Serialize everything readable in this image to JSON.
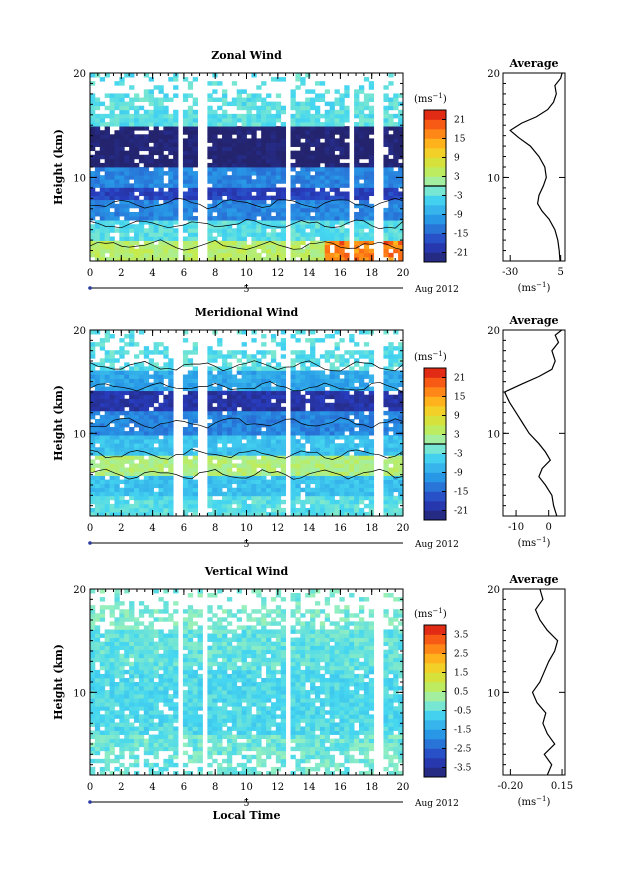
{
  "chart_data": [
    {
      "type": "heatmap",
      "title": "Zonal Wind",
      "ylabel": "Height (km)",
      "xlim": [
        0,
        20
      ],
      "ylim": [
        2,
        20
      ],
      "xticks": [
        "0",
        "2",
        "4",
        "6",
        "8",
        "10",
        "12",
        "14",
        "16",
        "18",
        "20"
      ],
      "yticks": [
        "10",
        "20"
      ],
      "date_tick": "5",
      "date_label": "Aug 2012",
      "colorbar": {
        "unit": "(ms",
        "unit_exp": "−1",
        "unit_close": ")",
        "range": [
          -24,
          24
        ],
        "ticks": [
          "21",
          "15",
          "9",
          "3",
          "-3",
          "-9",
          "-15",
          "-21"
        ],
        "zero_line": 0
      },
      "gaps": [
        [
          5.5,
          5.9
        ],
        [
          7.0,
          7.5
        ],
        [
          12.5,
          12.9
        ],
        [
          16.5,
          16.9
        ],
        [
          18.0,
          18.6
        ]
      ],
      "layers": [
        {
          "from": 2,
          "to": 4,
          "value": 4
        },
        {
          "from": 4,
          "to": 6,
          "value": -3
        },
        {
          "from": 6,
          "to": 8,
          "value": -12
        },
        {
          "from": 8,
          "to": 9,
          "value": -18
        },
        {
          "from": 9,
          "to": 11,
          "value": -12
        },
        {
          "from": 11,
          "to": 13,
          "value": -24
        },
        {
          "from": 13,
          "to": 15,
          "value": -24
        },
        {
          "from": 15,
          "to": 18,
          "value": -3
        }
      ],
      "average": {
        "title": "Average",
        "xlim": [
          -35,
          8
        ],
        "xticks": [
          "-30",
          "5"
        ],
        "unit": "(ms",
        "unit_exp": "−1",
        "unit_close": ")",
        "profile": [
          [
            4.5,
            2
          ],
          [
            4.0,
            3
          ],
          [
            3.0,
            4
          ],
          [
            1.0,
            5
          ],
          [
            -3,
            6
          ],
          [
            -8,
            6.8
          ],
          [
            -11,
            7.5
          ],
          [
            -10,
            8.3
          ],
          [
            -7,
            9.2
          ],
          [
            -5,
            10
          ],
          [
            -6,
            11
          ],
          [
            -10,
            12
          ],
          [
            -16,
            13
          ],
          [
            -24,
            13.8
          ],
          [
            -30,
            14.5
          ],
          [
            -22,
            15.2
          ],
          [
            -12,
            15.8
          ],
          [
            -4,
            16.5
          ],
          [
            0,
            17.2
          ],
          [
            2,
            18
          ],
          [
            1,
            18.8
          ],
          [
            5,
            19.5
          ],
          [
            6,
            20
          ]
        ]
      }
    },
    {
      "type": "heatmap",
      "title": "Meridional Wind",
      "ylabel": "Height (km)",
      "xlim": [
        0,
        20
      ],
      "ylim": [
        2,
        20
      ],
      "xticks": [
        "0",
        "2",
        "4",
        "6",
        "8",
        "10",
        "12",
        "14",
        "16",
        "18",
        "20"
      ],
      "yticks": [
        "10",
        "20"
      ],
      "date_tick": "5",
      "date_label": "Aug 2012",
      "colorbar": {
        "unit": "(ms",
        "unit_exp": "−1",
        "unit_close": ")",
        "range": [
          -24,
          24
        ],
        "ticks": [
          "21",
          "15",
          "9",
          "3",
          "-3",
          "-9",
          "-15",
          "-21"
        ],
        "zero_line": 0
      },
      "gaps": [
        [
          5.4,
          5.8
        ],
        [
          7.0,
          7.5
        ],
        [
          12.5,
          12.9
        ],
        [
          18.0,
          18.6
        ]
      ],
      "layers": [
        {
          "from": 2,
          "to": 4,
          "value": -3
        },
        {
          "from": 4,
          "to": 6,
          "value": -6
        },
        {
          "from": 6,
          "to": 8,
          "value": 3
        },
        {
          "from": 8,
          "to": 10,
          "value": -6
        },
        {
          "from": 10,
          "to": 12,
          "value": -12
        },
        {
          "from": 12,
          "to": 14,
          "value": -20
        },
        {
          "from": 14,
          "to": 16,
          "value": -9
        },
        {
          "from": 16,
          "to": 18,
          "value": -3
        }
      ],
      "average": {
        "title": "Average",
        "xlim": [
          -14,
          5
        ],
        "xticks": [
          "-10",
          "0"
        ],
        "unit": "(ms",
        "unit_exp": "−1",
        "unit_close": ")",
        "profile": [
          [
            2.5,
            2
          ],
          [
            1.5,
            3
          ],
          [
            1.0,
            4
          ],
          [
            -1,
            5
          ],
          [
            -3,
            5.8
          ],
          [
            -2,
            6.6
          ],
          [
            0.5,
            7.4
          ],
          [
            -1,
            8.2
          ],
          [
            -3,
            9
          ],
          [
            -6,
            10
          ],
          [
            -8,
            11
          ],
          [
            -10,
            12
          ],
          [
            -12,
            13
          ],
          [
            -13.5,
            14
          ],
          [
            -8,
            14.8
          ],
          [
            -3,
            15.5
          ],
          [
            1,
            16.2
          ],
          [
            2,
            17
          ],
          [
            1,
            18
          ],
          [
            3,
            18.8
          ],
          [
            2,
            19.5
          ],
          [
            4,
            20
          ]
        ]
      }
    },
    {
      "type": "heatmap",
      "title": "Vertical Wind",
      "ylabel": "Height (km)",
      "xlabel": "Local Time",
      "xlim": [
        0,
        20
      ],
      "ylim": [
        2,
        20
      ],
      "xticks": [
        "0",
        "2",
        "4",
        "6",
        "8",
        "10",
        "12",
        "14",
        "16",
        "18",
        "20"
      ],
      "yticks": [
        "10",
        "20"
      ],
      "date_tick": "5",
      "date_label": "Aug 2012",
      "colorbar": {
        "unit": "(ms",
        "unit_exp": "−1",
        "unit_close": ")",
        "range": [
          -4,
          4
        ],
        "ticks": [
          "3.5",
          "2.5",
          "1.5",
          "0.5",
          "-0.5",
          "-1.5",
          "-2.5",
          "-3.5"
        ]
      },
      "gaps": [
        [
          5.5,
          5.9
        ],
        [
          7.2,
          7.6
        ],
        [
          12.5,
          12.9
        ],
        [
          18.0,
          18.6
        ]
      ],
      "layers": [
        {
          "from": 2,
          "to": 6,
          "value": -0.3
        },
        {
          "from": 6,
          "to": 12,
          "value": -0.6
        },
        {
          "from": 12,
          "to": 16,
          "value": -0.4
        },
        {
          "from": 16,
          "to": 20,
          "value": -0.2
        }
      ],
      "average": {
        "title": "Average",
        "xlim": [
          -0.25,
          0.17
        ],
        "xticks": [
          "-0.20",
          "0.15"
        ],
        "unit": "(ms",
        "unit_exp": "−1",
        "unit_close": ")",
        "profile": [
          [
            0.05,
            2
          ],
          [
            0.08,
            3
          ],
          [
            0.03,
            4
          ],
          [
            0.1,
            5
          ],
          [
            0.05,
            6
          ],
          [
            0.02,
            7
          ],
          [
            0.04,
            8
          ],
          [
            -0.02,
            9
          ],
          [
            -0.05,
            10
          ],
          [
            0.0,
            11
          ],
          [
            0.03,
            12
          ],
          [
            0.06,
            13
          ],
          [
            0.1,
            14
          ],
          [
            0.12,
            15
          ],
          [
            0.05,
            16
          ],
          [
            0.0,
            17
          ],
          [
            -0.03,
            18
          ],
          [
            0.02,
            19
          ],
          [
            0.0,
            20
          ]
        ]
      }
    }
  ]
}
